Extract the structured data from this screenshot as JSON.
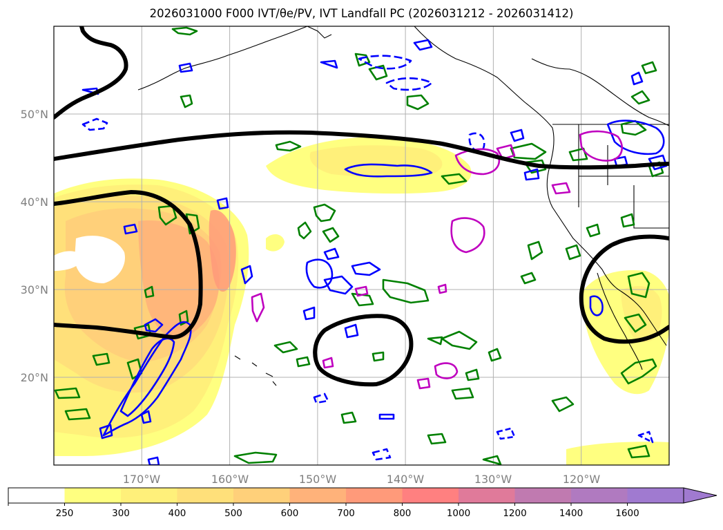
{
  "title": "2026031000 F000 IVT/θe/PV, IVT Landfall PC (2026031212 - 2026031412)",
  "map": {
    "lon_range": [
      -180,
      -110
    ],
    "lat_range": [
      10,
      60
    ],
    "lat_ticks": [
      {
        "value": 20,
        "label": "20°N"
      },
      {
        "value": 30,
        "label": "30°N"
      },
      {
        "value": 40,
        "label": "40°N"
      },
      {
        "value": 50,
        "label": "50°N"
      }
    ],
    "lon_ticks": [
      {
        "value": -170,
        "label": "170°W"
      },
      {
        "value": -160,
        "label": "160°W"
      },
      {
        "value": -150,
        "label": "150°W"
      },
      {
        "value": -140,
        "label": "140°W"
      },
      {
        "value": -130,
        "label": "130°W"
      },
      {
        "value": -120,
        "label": "120°W"
      }
    ],
    "gridlines": true,
    "colors": {
      "landfall_pc_contour": "#000000",
      "theta_e_contour": "#008000",
      "pv_contour": "#0000ff",
      "ivt_secondary_contour": "#bf00bf",
      "coastline": "#000000"
    }
  },
  "colorbar": {
    "levels": [
      "250",
      "300",
      "400",
      "500",
      "600",
      "700",
      "800",
      "1000",
      "1200",
      "1400",
      "1600"
    ],
    "colors": [
      "#ffffff",
      "#ffff80",
      "#fff07a",
      "#ffe07a",
      "#ffd07a",
      "#ffb27a",
      "#ff9a7a",
      "#ff8080",
      "#e07a9a",
      "#c07ab0",
      "#b07ac0",
      "#a07ad0"
    ],
    "extend": "max"
  }
}
